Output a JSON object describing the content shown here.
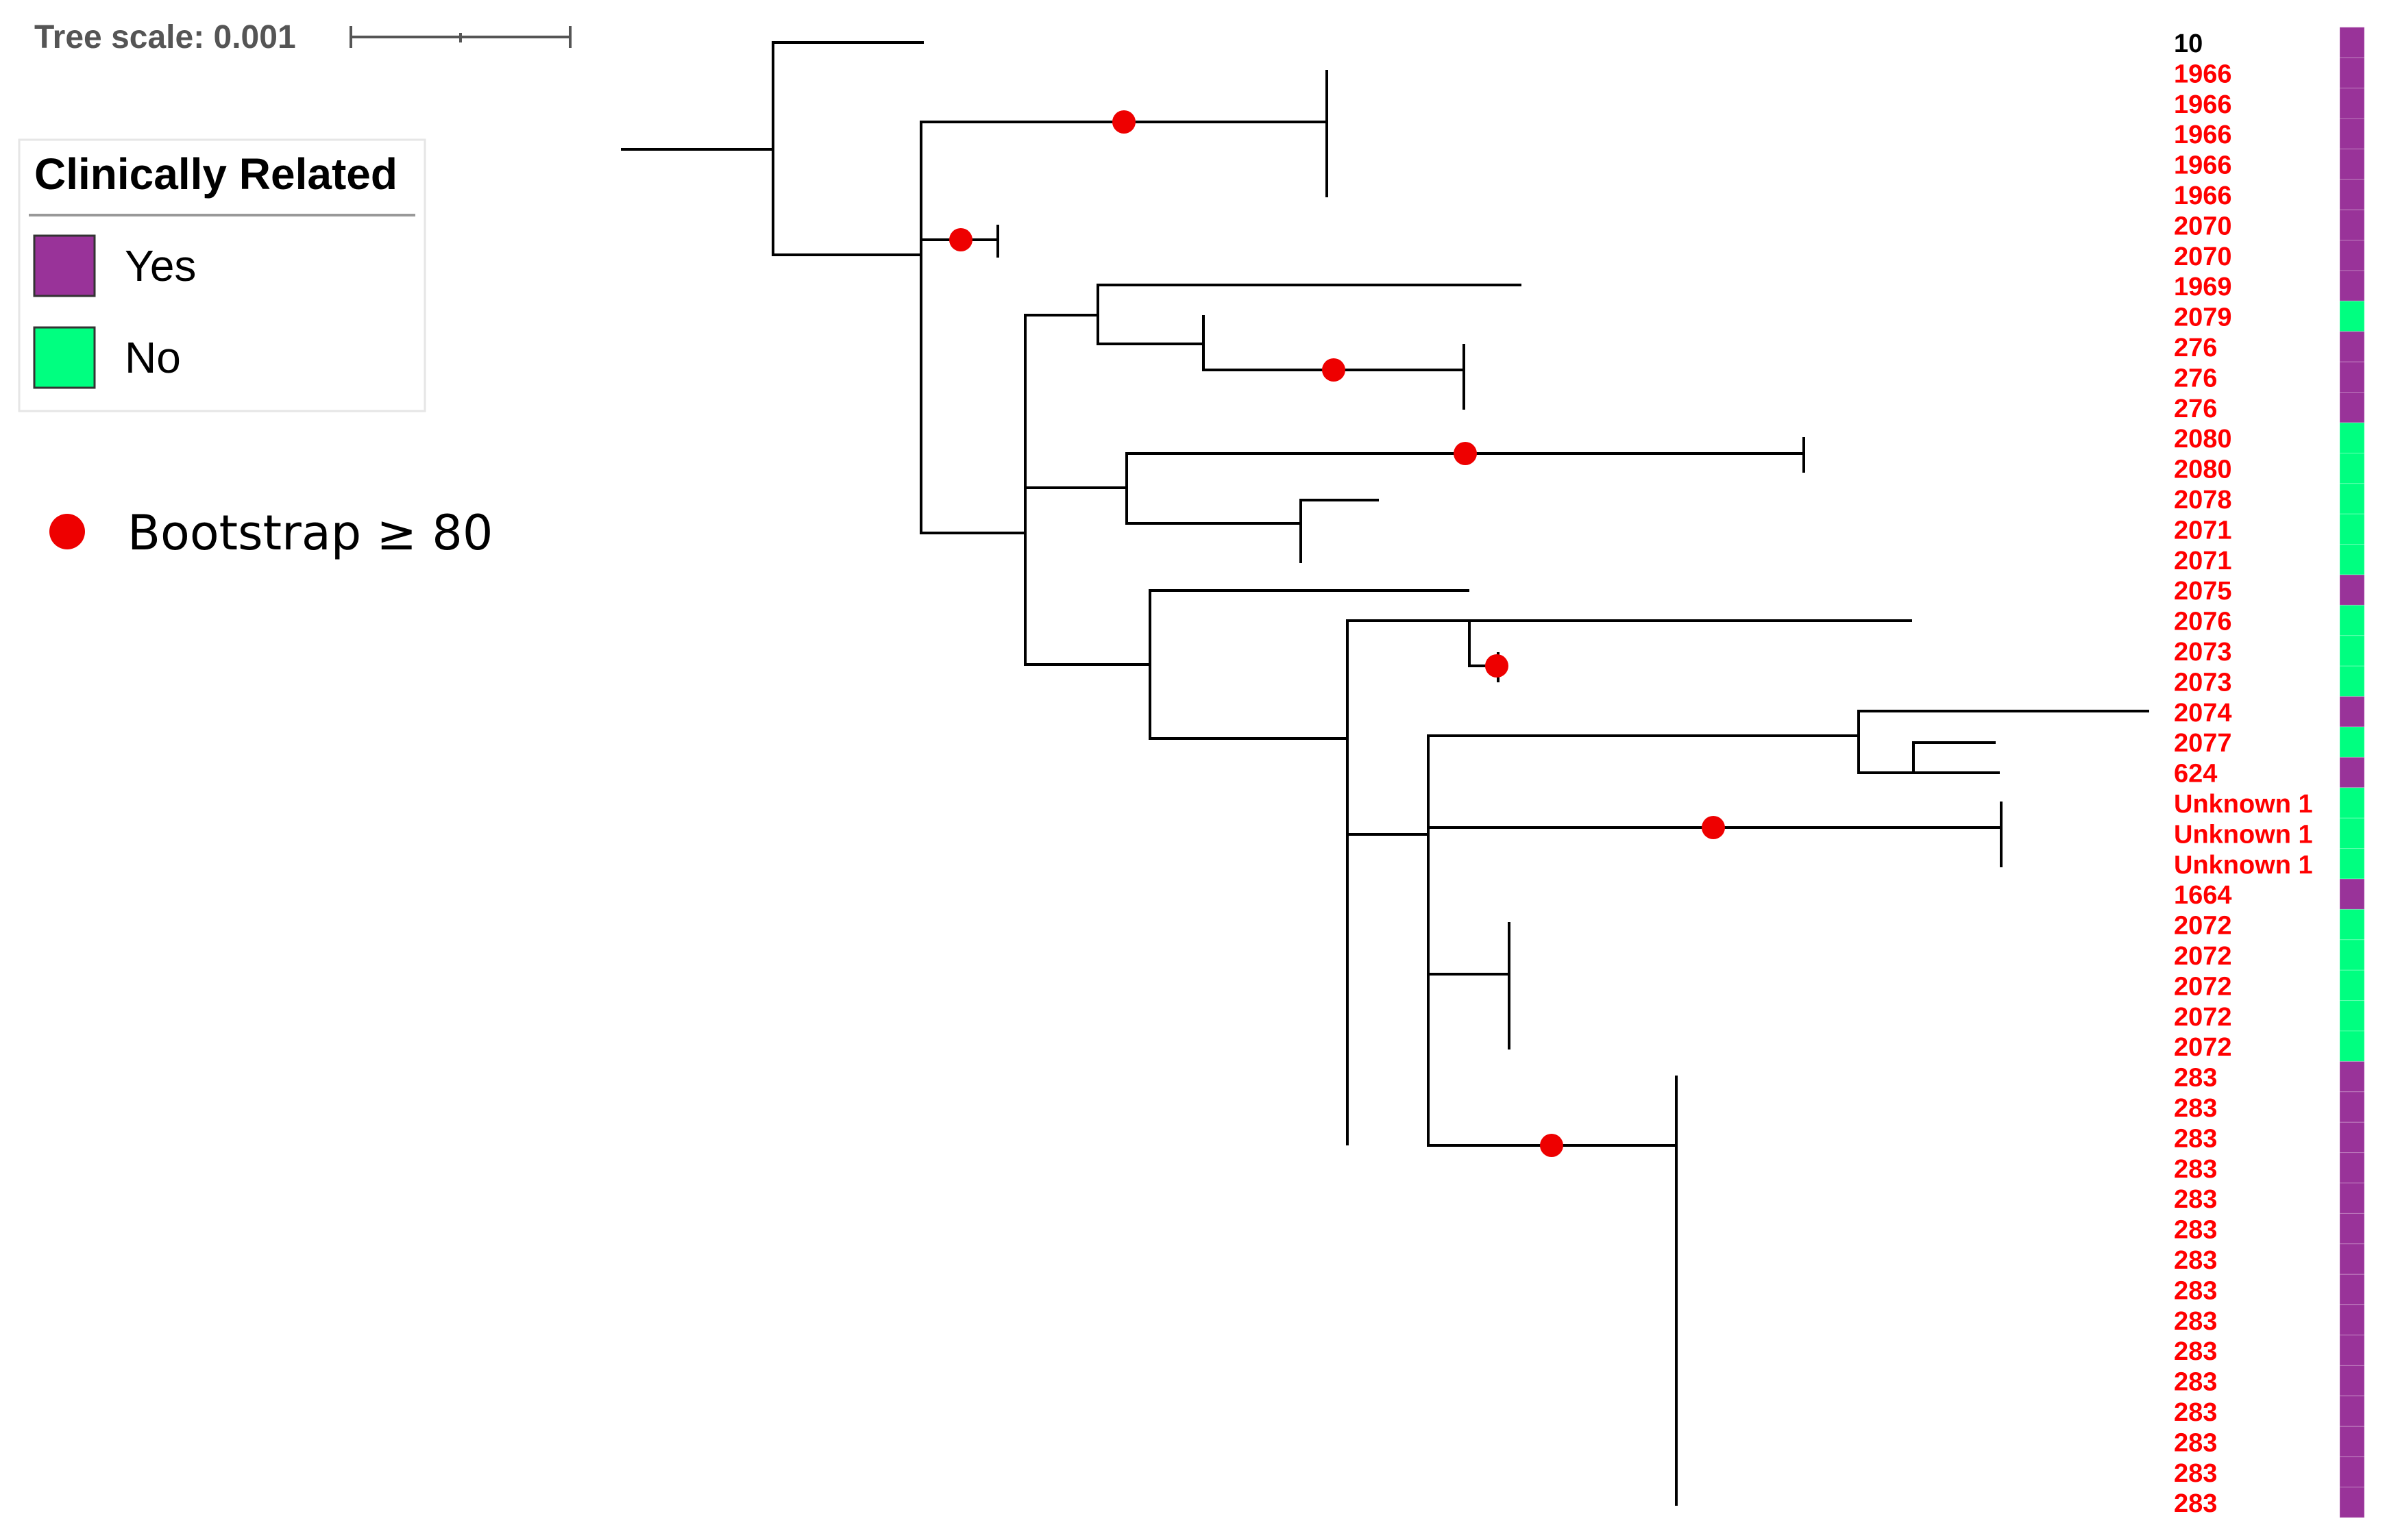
{
  "tree_scale": {
    "label": "Tree scale: 0.001"
  },
  "legend": {
    "title": "Clinically Related",
    "items": [
      {
        "label": "Yes",
        "color": "#993399"
      },
      {
        "label": "No",
        "color": "#00ff80"
      }
    ]
  },
  "bootstrap": {
    "label": "Bootstrap ≥ 80",
    "color": "#dd0000"
  },
  "colors": {
    "branch": "#000000",
    "leaf_text": "#ff0000",
    "root_leaf_text": "#000000"
  },
  "leaves": [
    {
      "label": "10",
      "related": "Yes"
    },
    {
      "label": "1966",
      "related": "Yes"
    },
    {
      "label": "1966",
      "related": "Yes"
    },
    {
      "label": "1966",
      "related": "Yes"
    },
    {
      "label": "1966",
      "related": "Yes"
    },
    {
      "label": "1966",
      "related": "Yes"
    },
    {
      "label": "2070",
      "related": "Yes"
    },
    {
      "label": "2070",
      "related": "Yes"
    },
    {
      "label": "1969",
      "related": "Yes"
    },
    {
      "label": "2079",
      "related": "No"
    },
    {
      "label": "276",
      "related": "Yes"
    },
    {
      "label": "276",
      "related": "Yes"
    },
    {
      "label": "276",
      "related": "Yes"
    },
    {
      "label": "2080",
      "related": "No"
    },
    {
      "label": "2080",
      "related": "No"
    },
    {
      "label": "2078",
      "related": "No"
    },
    {
      "label": "2071",
      "related": "No"
    },
    {
      "label": "2071",
      "related": "No"
    },
    {
      "label": "2075",
      "related": "Yes"
    },
    {
      "label": "2076",
      "related": "No"
    },
    {
      "label": "2073",
      "related": "No"
    },
    {
      "label": "2073",
      "related": "No"
    },
    {
      "label": "2074",
      "related": "Yes"
    },
    {
      "label": "2077",
      "related": "No"
    },
    {
      "label": "624",
      "related": "Yes"
    },
    {
      "label": "Unknown 1",
      "related": "No"
    },
    {
      "label": "Unknown 1",
      "related": "No"
    },
    {
      "label": "Unknown 1",
      "related": "No"
    },
    {
      "label": "1664",
      "related": "Yes"
    },
    {
      "label": "2072",
      "related": "No"
    },
    {
      "label": "2072",
      "related": "No"
    },
    {
      "label": "2072",
      "related": "No"
    },
    {
      "label": "2072",
      "related": "No"
    },
    {
      "label": "2072",
      "related": "No"
    },
    {
      "label": "283",
      "related": "Yes"
    },
    {
      "label": "283",
      "related": "Yes"
    },
    {
      "label": "283",
      "related": "Yes"
    },
    {
      "label": "283",
      "related": "Yes"
    },
    {
      "label": "283",
      "related": "Yes"
    },
    {
      "label": "283",
      "related": "Yes"
    },
    {
      "label": "283",
      "related": "Yes"
    },
    {
      "label": "283",
      "related": "Yes"
    },
    {
      "label": "283",
      "related": "Yes"
    },
    {
      "label": "283",
      "related": "Yes"
    },
    {
      "label": "283",
      "related": "Yes"
    },
    {
      "label": "283",
      "related": "Yes"
    },
    {
      "label": "283",
      "related": "Yes"
    },
    {
      "label": "283",
      "related": "Yes"
    },
    {
      "label": "283",
      "related": "Yes"
    }
  ]
}
